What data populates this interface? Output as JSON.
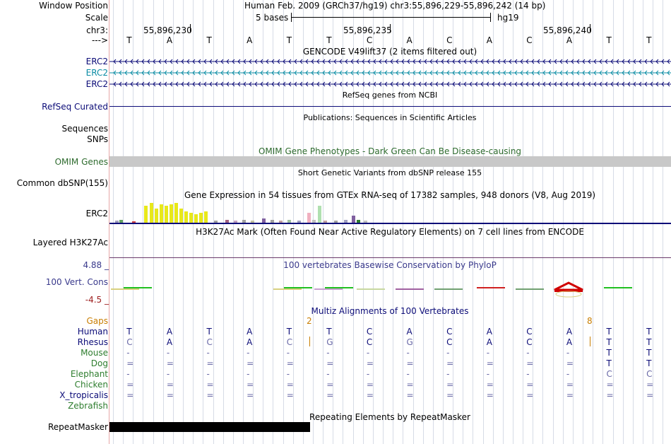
{
  "colors": {
    "erc2_blue": "#0c0c78",
    "erc2_teal": "#0a8ca4",
    "refseq_navy": "#0c0c78",
    "omim_green": "#2e6b2e",
    "omim_bar": "#c8c8c8",
    "gtex_yellow": "#e8e81a",
    "cons_blue": "#3a3a8c",
    "cons_red": "#9e2020",
    "gaps_orange": "#c87d00",
    "mammal_green": "#2e7d2e",
    "gray_base": "#6a6aa8"
  },
  "header": {
    "window_position_label": "Window Position",
    "window_position_value": "Human Feb. 2009 (GRCh37/hg19)   chr3:55,896,229-55,896,242 (14 bp)",
    "scale_label": "Scale",
    "scale_value": "5 bases",
    "scale_assembly": "hg19",
    "chr_label": "chr3:",
    "chr_ticks": [
      "55,896,230",
      "55,896,235",
      "55,896,240"
    ],
    "strand_label": "--->",
    "bases": [
      "T",
      "A",
      "T",
      "A",
      "T",
      "T",
      "C",
      "A",
      "C",
      "A",
      "C",
      "A",
      "T",
      "T"
    ]
  },
  "tracks": {
    "gencode_title": "GENCODE V49lift37 (2 items filtered out)",
    "gencode_items": [
      "ERC2",
      "ERC2",
      "ERC2"
    ],
    "refseq_title": "RefSeq genes from NCBI",
    "refseq_label": "RefSeq Curated",
    "pubs_title": "Publications: Sequences in Scientific Articles",
    "pubs_sequences": "Sequences",
    "pubs_snps": "SNPs",
    "omim_title": "OMIM Gene Phenotypes - Dark Green Can Be Disease-causing",
    "omim_label": "OMIM Genes",
    "dbsnp_title": "Short Genetic Variants from dbSNP release 155",
    "dbsnp_label": "Common dbSNP(155)",
    "gtex_title": "Gene Expression in 54 tissues from GTEx RNA-seq of 17382 samples, 948 donors (V8, Aug 2019)",
    "gtex_label": "ERC2",
    "h3k27_title": "H3K27Ac Mark (Often Found Near Active Regulatory Elements) on 7 cell lines from ENCODE",
    "h3k27_label": "Layered H3K27Ac",
    "cons_title": "100 vertebrates Basewise Conservation by PhyloP",
    "cons_label": "100 Vert. Cons",
    "cons_max": "4.88 _",
    "cons_min": "-4.5 _",
    "multiz_title": "Multiz Alignments of 100 Vertebrates",
    "gaps_label": "Gaps",
    "gap_counts": [
      "2",
      "8"
    ],
    "species": [
      "Human",
      "Rhesus",
      "Mouse",
      "Dog",
      "Elephant",
      "Chicken",
      "X_tropicalis",
      "Zebrafish"
    ],
    "alignment": {
      "Human": [
        "T",
        "A",
        "T",
        "A",
        "T",
        "T",
        "C",
        "A",
        "C",
        "A",
        "C",
        "A",
        "T",
        "T"
      ],
      "Rhesus": [
        "C",
        "A",
        "C",
        "A",
        "C",
        "G",
        "C",
        "G",
        "C",
        "A",
        "C",
        "A",
        "T",
        "T"
      ],
      "Mouse": [
        "-",
        "-",
        "-",
        "-",
        "-",
        "-",
        "-",
        "-",
        "-",
        "-",
        "-",
        "-",
        "T",
        "T"
      ],
      "Dog": [
        "=",
        "=",
        "=",
        "=",
        "=",
        "=",
        "=",
        "=",
        "=",
        "=",
        "=",
        "=",
        "T",
        "T"
      ],
      "Elephant": [
        "-",
        "-",
        "-",
        "-",
        "-",
        "-",
        "-",
        "-",
        "-",
        "-",
        "-",
        "-",
        "C",
        "C"
      ],
      "Chicken": [
        "=",
        "=",
        "=",
        "=",
        "=",
        "=",
        "=",
        "=",
        "=",
        "=",
        "=",
        "=",
        "=",
        "="
      ],
      "X_tropicalis": [
        "=",
        "=",
        "=",
        "=",
        "=",
        "=",
        "=",
        "=",
        "=",
        "=",
        "=",
        "=",
        "=",
        "="
      ],
      "Zebrafish": [
        "",
        "",
        "",
        "",
        "",
        "",
        "",
        "",
        "",
        "",
        "",
        "",
        "",
        ""
      ]
    },
    "rmsk_title": "Repeating Elements by RepeatMasker",
    "rmsk_label": "RepeatMasker"
  }
}
